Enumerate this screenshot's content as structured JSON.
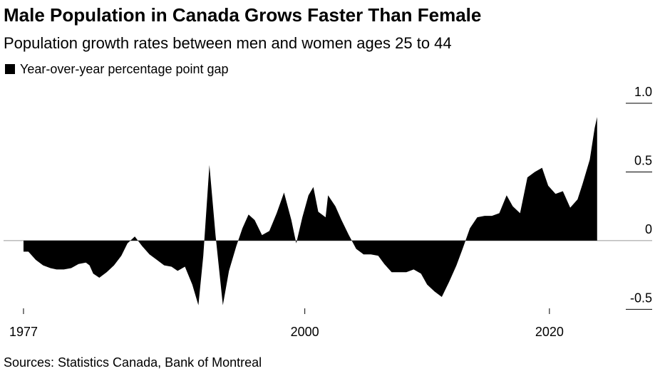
{
  "chart_data": {
    "type": "area",
    "title": "Male Population in Canada Grows Faster Than Female",
    "subtitle": "Population growth rates between men and women ages 25 to 44",
    "source": "Sources: Statistics Canada, Bank of Montreal",
    "series": [
      {
        "name": "Year-over-year percentage point gap",
        "color": "#000000",
        "x": [
          1977,
          1977.4,
          1978,
          1978.6,
          1979.2,
          1979.7,
          1980.3,
          1980.9,
          1981.5,
          1982.1,
          1982.4,
          1982.7,
          1983.2,
          1983.8,
          1984.4,
          1985,
          1985.5,
          1986.1,
          1986.7,
          1987.3,
          1987.9,
          1988.5,
          1989.1,
          1989.6,
          1990.2,
          1990.8,
          1991.3,
          1991.7,
          1992.2,
          1992.7,
          1993.3,
          1993.8,
          1994.4,
          1994.9,
          1995.4,
          1995.9,
          1996.5,
          1997.1,
          1997.7,
          1998.3,
          1998.9,
          1999.3,
          1999.8,
          2000.3,
          2000.7,
          2001.1,
          2001.7,
          2001.9,
          2002.5,
          2003,
          2003.6,
          2004.2,
          2004.8,
          2005.4,
          2006,
          2006.5,
          2007.1,
          2007.7,
          2008.3,
          2008.9,
          2009.5,
          2010,
          2010.6,
          2011.2,
          2011.8,
          2012.4,
          2012.9,
          2013.5,
          2014.1,
          2014.7,
          2015.3,
          2015.9,
          2016.5,
          2017,
          2017.6,
          2018.2,
          2018.8,
          2019.4,
          2019.9,
          2020.5,
          2021.1,
          2021.7,
          2022.3,
          2022.7,
          2023.3,
          2023.7,
          2023.9
        ],
        "values": [
          -0.08,
          -0.08,
          -0.14,
          -0.18,
          -0.2,
          -0.21,
          -0.21,
          -0.2,
          -0.17,
          -0.16,
          -0.18,
          -0.24,
          -0.27,
          -0.23,
          -0.18,
          -0.11,
          -0.02,
          0.03,
          -0.04,
          -0.1,
          -0.14,
          -0.18,
          -0.19,
          -0.22,
          -0.19,
          -0.32,
          -0.47,
          -0.11,
          0.55,
          0.04,
          -0.47,
          -0.22,
          -0.04,
          0.09,
          0.19,
          0.15,
          0.04,
          0.07,
          0.2,
          0.35,
          0.15,
          -0.02,
          0.17,
          0.33,
          0.39,
          0.21,
          0.17,
          0.33,
          0.25,
          0.15,
          0.04,
          -0.06,
          -0.1,
          -0.1,
          -0.11,
          -0.17,
          -0.23,
          -0.23,
          -0.23,
          -0.21,
          -0.24,
          -0.32,
          -0.37,
          -0.41,
          -0.3,
          -0.18,
          -0.06,
          0.09,
          0.17,
          0.18,
          0.18,
          0.2,
          0.33,
          0.25,
          0.2,
          0.46,
          0.5,
          0.53,
          0.4,
          0.34,
          0.36,
          0.24,
          0.3,
          0.41,
          0.59,
          0.82,
          0.9
        ]
      }
    ],
    "xlim": [
      1975.37,
      2028.4
    ],
    "xticks": [
      1977,
      2000,
      2020
    ],
    "ylim": [
      -0.55,
      1.1
    ],
    "yticks": [
      {
        "value": 1,
        "label": "1.0"
      },
      0.5,
      0,
      -0.5
    ]
  }
}
